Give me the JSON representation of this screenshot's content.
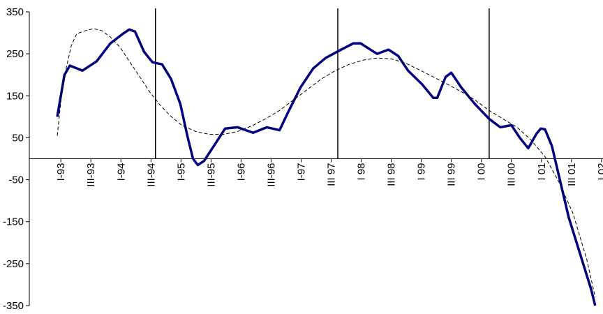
{
  "chart_data": {
    "type": "line",
    "x": [
      -0.12,
      0.12,
      0.3,
      0.72,
      1.19,
      1.65,
      2.07,
      2.28,
      2.47,
      2.77,
      3.05,
      3.37,
      3.67,
      3.98,
      4.21,
      4.4,
      4.56,
      4.77,
      5.09,
      5.47,
      5.88,
      6.4,
      6.86,
      7.28,
      7.56,
      7.98,
      8.4,
      8.81,
      9.28,
      9.74,
      9.98,
      10.35,
      10.53,
      10.91,
      11.23,
      11.56,
      12.02,
      12.4,
      12.53,
      12.81,
      13.0,
      13.33,
      13.79,
      14.26,
      14.63,
      15.0,
      15.28,
      15.56,
      15.84,
      15.98,
      16.12,
      16.35,
      16.58,
      16.91,
      17.28,
      17.65,
      17.79
    ],
    "series": [
      {
        "color": "#000080",
        "values": [
          100,
          200,
          222,
          210,
          232,
          275,
          298,
          308,
          303,
          255,
          230,
          225,
          190,
          130,
          55,
          0,
          -15,
          -5,
          30,
          72,
          75,
          62,
          75,
          68,
          110,
          170,
          215,
          240,
          258,
          275,
          275,
          258,
          250,
          260,
          245,
          210,
          178,
          145,
          145,
          195,
          205,
          170,
          130,
          95,
          75,
          80,
          50,
          25,
          60,
          72,
          70,
          30,
          -40,
          -140,
          -225,
          -310,
          -350
        ]
      },
      {
        "color": "#000000",
        "dashed": true,
        "x": [
          -0.12,
          0.02,
          0.19,
          0.35,
          0.53,
          0.81,
          1.09,
          1.37,
          1.65,
          1.98,
          2.3,
          2.63,
          2.95,
          3.28,
          3.65,
          4.02,
          4.49,
          4.95,
          5.42,
          5.88,
          6.35,
          6.81,
          7.28,
          7.74,
          8.21,
          8.67,
          9.14,
          9.6,
          10.07,
          10.53,
          11.0,
          11.47,
          11.93,
          12.4,
          12.86,
          13.33,
          13.79,
          14.26,
          14.72,
          15.19,
          15.65,
          16.12,
          16.58,
          17.05,
          17.51,
          17.79
        ],
        "values": [
          55,
          150,
          220,
          270,
          298,
          305,
          310,
          305,
          290,
          265,
          230,
          195,
          160,
          130,
          102,
          80,
          65,
          58,
          58,
          65,
          78,
          95,
          115,
          140,
          165,
          190,
          210,
          225,
          235,
          240,
          238,
          228,
          212,
          195,
          178,
          160,
          140,
          115,
          95,
          75,
          45,
          5,
          -55,
          -130,
          -240,
          -330
        ]
      }
    ],
    "vertical_lines": [
      3.15,
      9.22,
      14.26
    ],
    "xlim": [
      -1.05,
      18.05
    ],
    "xticks": [
      {
        "value": 0,
        "label": "I-93"
      },
      {
        "value": 1,
        "label": "III-93"
      },
      {
        "value": 2,
        "label": "I-94"
      },
      {
        "value": 3,
        "label": "III-94"
      },
      {
        "value": 4,
        "label": "I-95"
      },
      {
        "value": 5,
        "label": "III-95"
      },
      {
        "value": 6,
        "label": "I-96"
      },
      {
        "value": 7,
        "label": "III-96"
      },
      {
        "value": 8,
        "label": "I-97"
      },
      {
        "value": 9,
        "label": "III 97"
      },
      {
        "value": 10,
        "label": "I 98"
      },
      {
        "value": 11,
        "label": "III 98"
      },
      {
        "value": 12,
        "label": "I 99"
      },
      {
        "value": 13,
        "label": "III 99"
      },
      {
        "value": 14,
        "label": "I 00"
      },
      {
        "value": 15,
        "label": "III 00"
      },
      {
        "value": 16,
        "label": "I 01"
      },
      {
        "value": 17,
        "label": "III 01"
      },
      {
        "value": 18,
        "label": "I 02"
      }
    ],
    "ylim": [
      -350,
      350
    ],
    "yticks": [
      -350,
      -250,
      -150,
      -50,
      50,
      150,
      250,
      350
    ]
  }
}
